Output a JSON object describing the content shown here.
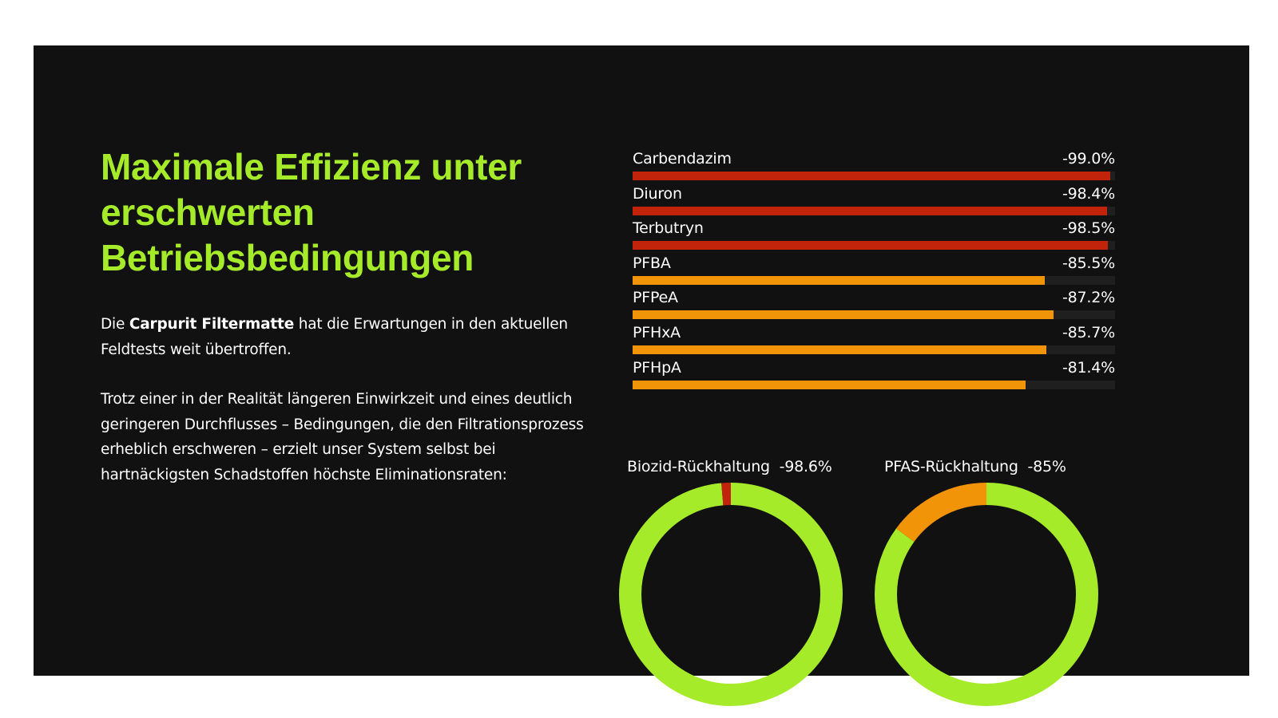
{
  "headline": "Maximale Effizienz unter erschwerten Betriebsbedingungen",
  "intro": {
    "prefix": "Die ",
    "bold": "Carpurit Filtermatte",
    "suffix": " hat die Erwartungen in den aktuellen Feldtests weit übertroffen."
  },
  "paragraph2": "Trotz einer in der Realität längeren Einwirkzeit und eines deutlich geringeren Durchflusses – Bedingungen, die den Filtrationsprozess erheblich erschweren – erzielt unser System selbst bei hartnäckigsten Schadstoffen höchste Eliminationsraten:",
  "colors": {
    "background": "#111111",
    "accent_green": "#a6eb2a",
    "biozid_red": "#c1230b",
    "pfas_orange": "#f29407",
    "text": "#ffffff"
  },
  "chart_data": [
    {
      "type": "bar",
      "orientation": "horizontal",
      "categories": [
        "Carbendazim",
        "Diuron",
        "Terbutryn",
        "PFBA",
        "PFPeA",
        "PFHxA",
        "PFHpA"
      ],
      "values": [
        -99.0,
        -98.4,
        -98.5,
        -85.5,
        -87.2,
        -85.7,
        -81.4
      ],
      "value_labels": [
        "-99.0%",
        "-98.4%",
        "-98.5%",
        "-85.5%",
        "-87.2%",
        "-85.7%",
        "-81.4%"
      ],
      "bar_colors": [
        "#c1230b",
        "#c1230b",
        "#c1230b",
        "#f29407",
        "#f29407",
        "#f29407",
        "#f29407"
      ],
      "unit": "%",
      "xlim": [
        0,
        100
      ]
    },
    {
      "type": "pie",
      "title": "Biozid-Rückhaltung",
      "value_label": "-98.6%",
      "values": [
        98.6,
        1.4
      ],
      "colors": [
        "#a6eb2a",
        "#c1230b"
      ]
    },
    {
      "type": "pie",
      "title": "PFAS-Rückhaltung",
      "value_label": "-85%",
      "values": [
        85,
        15
      ],
      "colors": [
        "#a6eb2a",
        "#f29407"
      ]
    }
  ]
}
